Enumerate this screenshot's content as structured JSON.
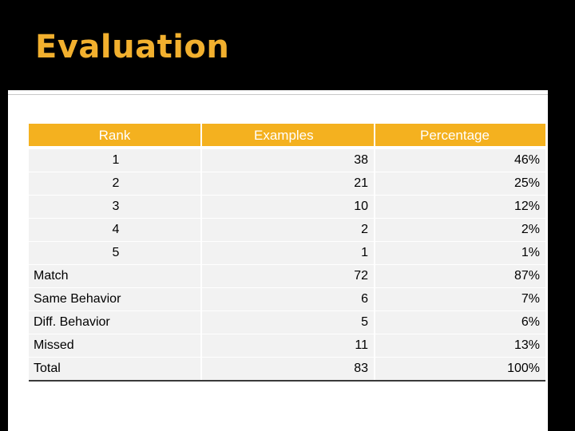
{
  "title": "Evaluation",
  "colors": {
    "accent": "#f4b11f",
    "title": "#f2b02e",
    "background": "#000000",
    "row": "#f2f2f2"
  },
  "table": {
    "headers": {
      "rank": "Rank",
      "examples": "Examples",
      "percentage": "Percentage"
    },
    "rows": [
      {
        "label": "",
        "rank": "1",
        "examples": "38",
        "percentage": "46%"
      },
      {
        "label": "",
        "rank": "2",
        "examples": "21",
        "percentage": "25%"
      },
      {
        "label": "",
        "rank": "3",
        "examples": "10",
        "percentage": "12%"
      },
      {
        "label": "",
        "rank": "4",
        "examples": "2",
        "percentage": "2%"
      },
      {
        "label": "",
        "rank": "5",
        "examples": "1",
        "percentage": "1%"
      },
      {
        "label": "Match",
        "rank": "",
        "examples": "72",
        "percentage": "87%"
      },
      {
        "label": "Same Behavior",
        "rank": "",
        "examples": "6",
        "percentage": "7%"
      },
      {
        "label": "Diff. Behavior",
        "rank": "",
        "examples": "5",
        "percentage": "6%"
      },
      {
        "label": "Missed",
        "rank": "",
        "examples": "11",
        "percentage": "13%"
      },
      {
        "label": "Total",
        "rank": "",
        "examples": "83",
        "percentage": "100%"
      }
    ]
  }
}
